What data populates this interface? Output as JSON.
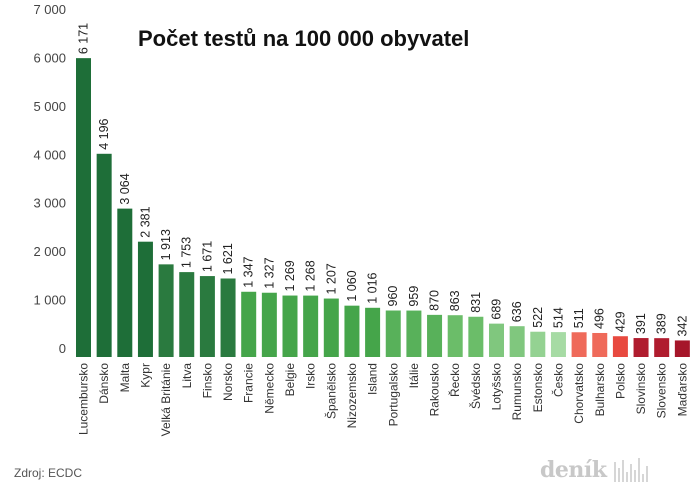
{
  "title": "Počet testů na 100 000 obyvatel",
  "source": "Zdroj: ECDC",
  "logo": {
    "text": "deník"
  },
  "chart_data": {
    "type": "bar",
    "title": "Počet testů na 100 000 obyvatel",
    "categories": [
      "Lucembursko",
      "Dánsko",
      "Malta",
      "Kypr",
      "Velká Británie",
      "Litva",
      "Finsko",
      "Norsko",
      "Francie",
      "Německo",
      "Belgie",
      "Irsko",
      "Španělsko",
      "Nizozemsko",
      "Island",
      "Portugalsko",
      "Itálie",
      "Rakousko",
      "Řecko",
      "Švédsko",
      "Lotyšsko",
      "Rumunsko",
      "Estonsko",
      "Česko",
      "Chorvatsko",
      "Bulharsko",
      "Polsko",
      "Slovinsko",
      "Slovensko",
      "Maďarsko"
    ],
    "values": [
      6171,
      4196,
      3064,
      2381,
      1913,
      1753,
      1671,
      1621,
      1347,
      1327,
      1269,
      1268,
      1207,
      1060,
      1016,
      960,
      959,
      870,
      863,
      831,
      689,
      636,
      522,
      514,
      511,
      496,
      429,
      391,
      389,
      342
    ],
    "value_labels": [
      "6 171",
      "4 196",
      "3 064",
      "2 381",
      "1 913",
      "1 753",
      "1 671",
      "1 621",
      "1 347",
      "1 327",
      "1 269",
      "1 268",
      "1 207",
      "1 060",
      "1 016",
      "960",
      "959",
      "870",
      "863",
      "831",
      "689",
      "636",
      "522",
      "514",
      "511",
      "496",
      "429",
      "391",
      "389",
      "342"
    ],
    "bar_colors": [
      "#1e6e38",
      "#1e6e38",
      "#1e6e38",
      "#1e6e38",
      "#2a7a3f",
      "#2a7a3f",
      "#2a7a3f",
      "#2a7a3f",
      "#45a54a",
      "#45a54a",
      "#45a54a",
      "#45a54a",
      "#45a54a",
      "#45a54a",
      "#45a54a",
      "#58b15a",
      "#58b15a",
      "#58b15a",
      "#6bbd69",
      "#6bbd69",
      "#80c77e",
      "#80c77e",
      "#94d292",
      "#a6dba4",
      "#ef6a5a",
      "#ef6a5a",
      "#e8493f",
      "#b01c2e",
      "#b01c2e",
      "#a6162a"
    ],
    "yticks": [
      0,
      1000,
      2000,
      3000,
      4000,
      5000,
      6000,
      7000
    ],
    "ytick_labels": [
      "0",
      "1 000",
      "2 000",
      "3 000",
      "4 000",
      "5 000",
      "6 000",
      "7 000"
    ],
    "ylim": [
      0,
      7000
    ],
    "xlabel": "",
    "ylabel": "",
    "grid": false,
    "legend": "none"
  }
}
